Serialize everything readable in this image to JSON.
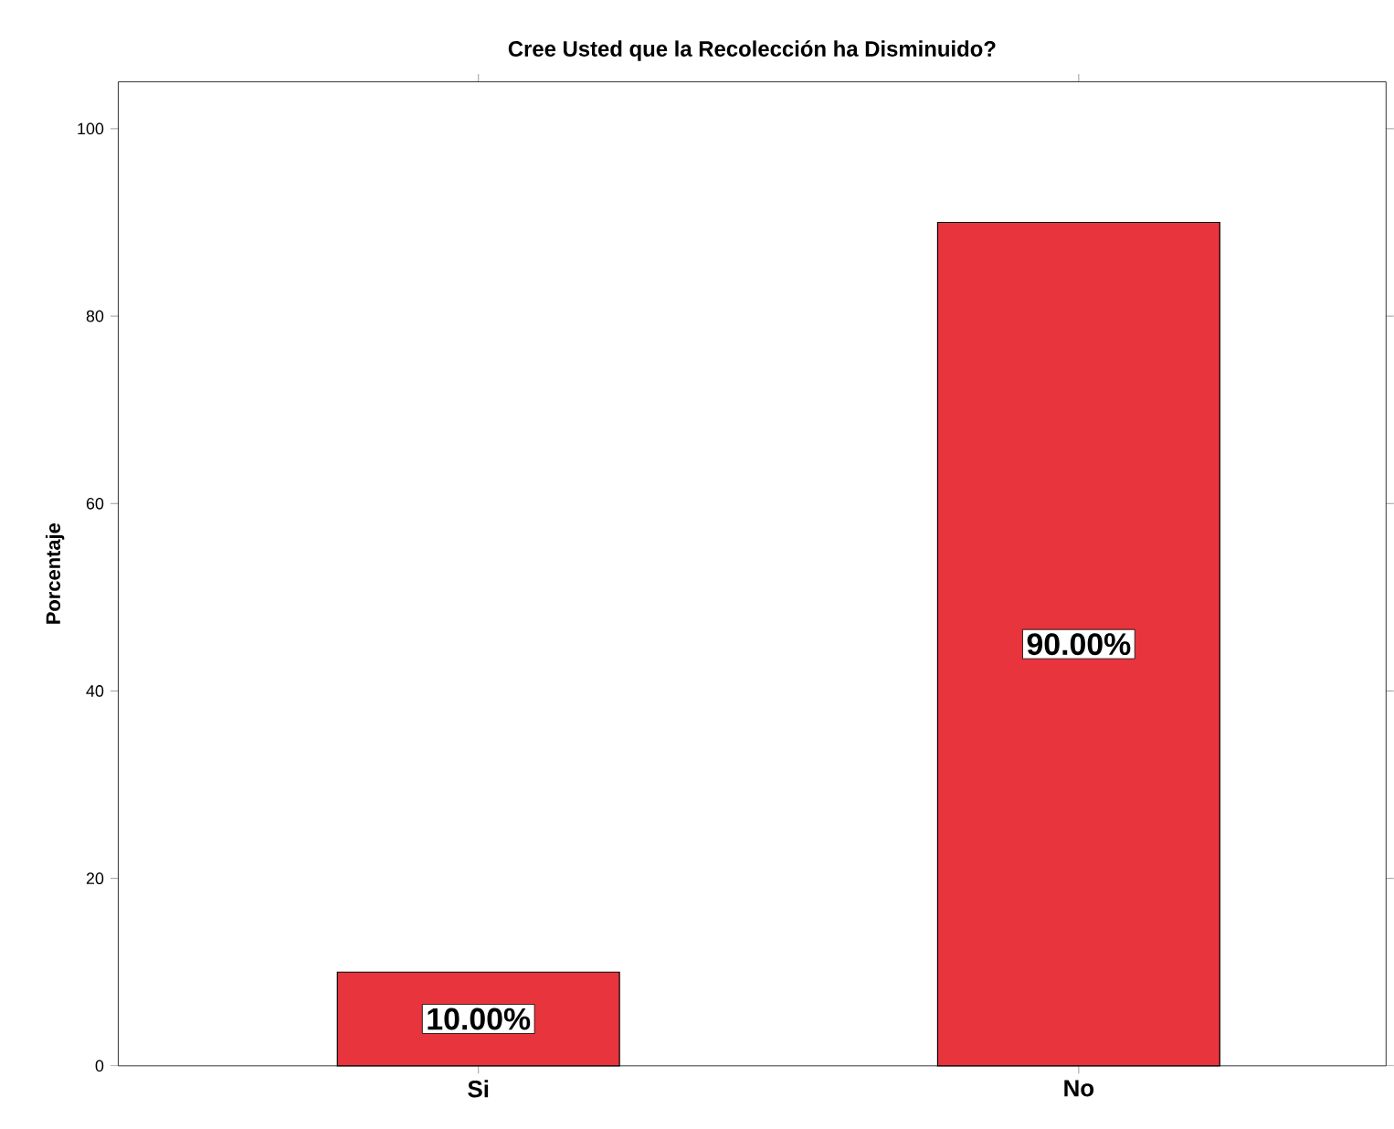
{
  "chart_data": {
    "type": "bar",
    "title": "Cree Usted que la Recolección ha Disminuido?",
    "ylabel": "Porcentaje",
    "categories": [
      "Si",
      "No"
    ],
    "values": [
      10,
      90
    ],
    "color": "#e8343c",
    "value_labels": [
      "10.00%",
      "90.00%"
    ],
    "ylim": [
      0,
      105
    ],
    "yticks": [
      0,
      20,
      40,
      60,
      80,
      100
    ]
  }
}
